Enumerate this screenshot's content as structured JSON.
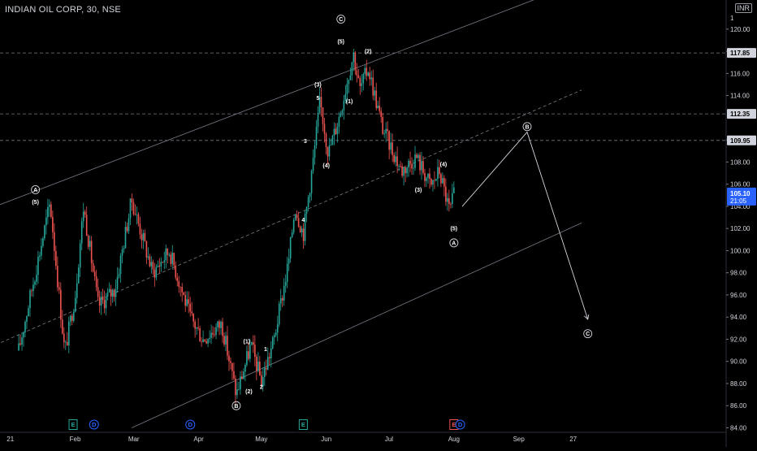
{
  "header": {
    "symbol_title": "INDIAN OIL CORP, 30, NSE",
    "currency": "INR"
  },
  "chart_data": {
    "type": "candlestick",
    "symbol": "INDIAN OIL CORP",
    "interval": "30",
    "exchange": "NSE",
    "ylim": [
      84.0,
      121.0
    ],
    "y_ticks": [
      "84.00",
      "86.00",
      "88.00",
      "90.00",
      "92.00",
      "94.00",
      "96.00",
      "98.00",
      "100.00",
      "102.00",
      "104.00",
      "106.00",
      "108.00",
      "110.00",
      "114.00",
      "116.00",
      "118.00",
      "120.00"
    ],
    "x_ticks": [
      "21",
      "Feb",
      "Mar",
      "Apr",
      "May",
      "Jun",
      "Jul",
      "Aug",
      "Sep",
      "27"
    ],
    "price_levels": [
      {
        "label": "117.85",
        "value": 117.85
      },
      {
        "label": "112.35",
        "value": 112.35
      },
      {
        "label": "109.95",
        "value": 109.95
      }
    ],
    "last_price": {
      "price": "105.10",
      "countdown": "21:05",
      "value": 105.1
    },
    "partial_top_tick": "1",
    "colors": {
      "up": "#26a69a",
      "down": "#ef5350",
      "background": "#000000",
      "line": "#9598a1",
      "last_price_badge": "#2962ff"
    },
    "price_path": [
      [
        "2021-01-05",
        91
      ],
      [
        "2021-01-20",
        104.3
      ],
      [
        "2021-01-27",
        90.8
      ],
      [
        "2021-02-01",
        96
      ],
      [
        "2021-02-05",
        104
      ],
      [
        "2021-02-12",
        95
      ],
      [
        "2021-02-20",
        96.5
      ],
      [
        "2021-02-28",
        104.6
      ],
      [
        "2021-03-10",
        98
      ],
      [
        "2021-03-18",
        100
      ],
      [
        "2021-03-28",
        94
      ],
      [
        "2021-04-03",
        92
      ],
      [
        "2021-04-12",
        93.4
      ],
      [
        "2021-04-19",
        87
      ],
      [
        "2021-04-26",
        91.5
      ],
      [
        "2021-05-01",
        88.2
      ],
      [
        "2021-05-07",
        92
      ],
      [
        "2021-05-14",
        99
      ],
      [
        "2021-05-17",
        104
      ],
      [
        "2021-05-21",
        101.5
      ],
      [
        "2021-05-26",
        108.5
      ],
      [
        "2021-05-29",
        113.5
      ],
      [
        "2021-06-02",
        108.8
      ],
      [
        "2021-06-07",
        112
      ],
      [
        "2021-06-14",
        117.8
      ],
      [
        "2021-06-17",
        114.5
      ],
      [
        "2021-06-21",
        116.5
      ],
      [
        "2021-06-28",
        111
      ],
      [
        "2021-07-07",
        107.2
      ],
      [
        "2021-07-14",
        108.5
      ],
      [
        "2021-07-21",
        105.8
      ],
      [
        "2021-07-25",
        107.2
      ],
      [
        "2021-07-30",
        103.5
      ],
      [
        "2021-08-01",
        105.1
      ]
    ],
    "wave_labels": [
      {
        "text": "C",
        "circled": true,
        "date": "2021-06-08",
        "price": 120.9
      },
      {
        "text": "(5)",
        "date": "2021-06-08",
        "price": 118.9
      },
      {
        "text": "(2)",
        "date": "2021-06-21",
        "price": 118.0
      },
      {
        "text": "(3)",
        "date": "2021-05-28",
        "price": 115.0
      },
      {
        "text": "5",
        "date": "2021-05-28",
        "price": 113.8
      },
      {
        "text": "(1)",
        "date": "2021-06-12",
        "price": 113.5
      },
      {
        "text": "3",
        "date": "2021-05-22",
        "price": 109.9
      },
      {
        "text": "(4)",
        "date": "2021-06-01",
        "price": 107.7
      },
      {
        "text": "4",
        "date": "2021-05-21",
        "price": 102.8
      },
      {
        "text": "A",
        "circled": true,
        "date": "2021-01-13",
        "price": 105.5
      },
      {
        "text": "(5)",
        "date": "2021-01-13",
        "price": 104.4
      },
      {
        "text": "(4)",
        "date": "2021-07-27",
        "price": 107.8
      },
      {
        "text": "(3)",
        "date": "2021-07-15",
        "price": 105.5
      },
      {
        "text": "(5)",
        "date": "2021-08-01",
        "price": 102.0
      },
      {
        "text": "A",
        "circled": true,
        "date": "2021-08-01",
        "price": 100.7
      },
      {
        "text": "B",
        "circled": true,
        "date": "2021-09-05",
        "price": 111.2
      },
      {
        "text": "C",
        "circled": true,
        "date": "2021-10-04",
        "price": 92.5
      },
      {
        "text": "(1)",
        "date": "2021-04-24",
        "price": 91.8
      },
      {
        "text": "1",
        "date": "2021-05-03",
        "price": 91.1
      },
      {
        "text": "B",
        "circled": true,
        "date": "2021-04-19",
        "price": 86.0
      },
      {
        "text": "(2)",
        "date": "2021-04-25",
        "price": 87.3
      },
      {
        "text": "2",
        "date": "2021-05-01",
        "price": 87.7
      }
    ],
    "event_markers": [
      {
        "text": "E",
        "kind": "earnings",
        "color": "#26a69a",
        "date": "2021-01-31"
      },
      {
        "text": "D",
        "kind": "dividend",
        "color": "#2962ff",
        "date": "2021-02-10"
      },
      {
        "text": "D",
        "kind": "dividend",
        "color": "#2962ff",
        "date": "2021-03-28"
      },
      {
        "text": "E",
        "kind": "earnings",
        "color": "#26a69a",
        "date": "2021-05-21"
      },
      {
        "text": "E",
        "kind": "earnings",
        "color": "#ef5350",
        "date": "2021-08-01"
      },
      {
        "text": "D",
        "kind": "dividend",
        "color": "#2962ff",
        "date": "2021-08-04"
      }
    ],
    "projection": [
      [
        "2021-08-05",
        104.0
      ],
      [
        "2021-09-05",
        110.7
      ],
      [
        "2021-10-04",
        93.8
      ]
    ],
    "channel_lines": [
      {
        "style": "solid",
        "start": [
          "2020-12-25",
          104.0
        ],
        "end": [
          "2021-09-20",
          123.5
        ]
      },
      {
        "style": "dashed",
        "start": [
          "2020-12-25",
          91.5
        ],
        "end": [
          "2021-10-01",
          114.5
        ]
      },
      {
        "style": "solid",
        "start": [
          "2021-02-28",
          84.0
        ],
        "end": [
          "2021-10-01",
          102.5
        ]
      }
    ]
  }
}
